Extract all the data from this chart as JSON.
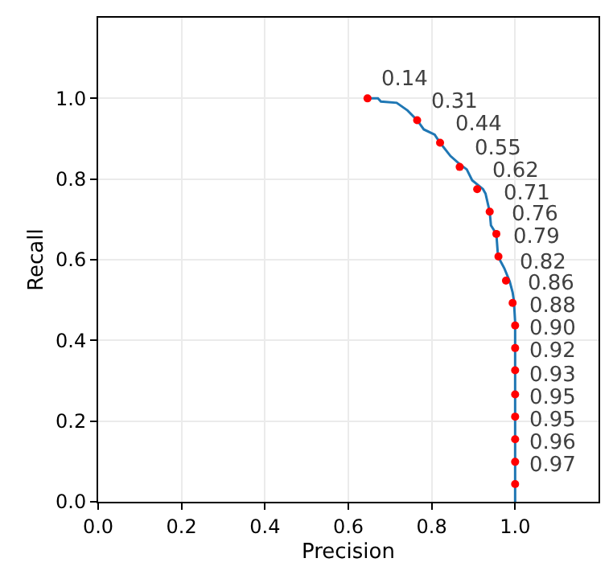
{
  "chart_data": {
    "type": "line",
    "xlabel": "Precision",
    "ylabel": "Recall",
    "xlim": [
      0,
      1.2
    ],
    "ylim": [
      0,
      1.2
    ],
    "xticks": [
      {
        "value": 0,
        "label": "0.0"
      },
      {
        "value": 0.2,
        "label": "0.2"
      },
      {
        "value": 0.4,
        "label": "0.4"
      },
      {
        "value": 0.6,
        "label": "0.6"
      },
      {
        "value": 0.8,
        "label": "0.8"
      },
      {
        "value": 1,
        "label": "1.0"
      }
    ],
    "yticks": [
      {
        "value": 0,
        "label": "0.0"
      },
      {
        "value": 0.2,
        "label": "0.2"
      },
      {
        "value": 0.4,
        "label": "0.4"
      },
      {
        "value": 0.6,
        "label": "0.6"
      },
      {
        "value": 0.8,
        "label": "0.8"
      },
      {
        "value": 1,
        "label": "1.0"
      }
    ],
    "grid": true,
    "series": [
      {
        "color": "#1f77b4",
        "marker": "none",
        "line_style": "solid",
        "x": [
          0.646,
          0.671,
          0.678,
          0.716,
          0.742,
          0.765,
          0.781,
          0.807,
          0.82,
          0.845,
          0.867,
          0.884,
          0.897,
          0.923,
          0.929,
          0.939,
          0.942,
          0.955,
          0.959,
          0.974,
          0.987,
          0.994,
          0.997,
          1.0,
          1.0
        ],
        "values": [
          1.0,
          1.0,
          0.992,
          0.989,
          0.97,
          0.946,
          0.923,
          0.91,
          0.89,
          0.857,
          0.837,
          0.824,
          0.797,
          0.775,
          0.764,
          0.719,
          0.685,
          0.664,
          0.608,
          0.579,
          0.546,
          0.519,
          0.499,
          0.446,
          0.0
        ]
      },
      {
        "type": "scatter",
        "color": "#ff0000",
        "marker": "circle",
        "x": [
          0.646,
          0.765,
          0.82,
          0.867,
          0.909,
          0.939,
          0.955,
          0.96,
          0.978,
          0.994,
          1.0,
          1.0,
          1.0,
          1.0,
          1.0,
          1.0,
          1.0,
          1.0
        ],
        "values": [
          1.0,
          0.946,
          0.89,
          0.83,
          0.775,
          0.719,
          0.664,
          0.608,
          0.548,
          0.493,
          0.437,
          0.381,
          0.326,
          0.266,
          0.211,
          0.155,
          0.099,
          0.044
        ]
      }
    ],
    "annotations": [
      {
        "text": "0.14",
        "x": 0.646,
        "y": 1.0
      },
      {
        "text": "0.31",
        "x": 0.765,
        "y": 0.946
      },
      {
        "text": "0.44",
        "x": 0.82,
        "y": 0.89
      },
      {
        "text": "0.55",
        "x": 0.867,
        "y": 0.83
      },
      {
        "text": "0.62",
        "x": 0.909,
        "y": 0.775
      },
      {
        "text": "0.71",
        "x": 0.939,
        "y": 0.719
      },
      {
        "text": "0.76",
        "x": 0.955,
        "y": 0.664
      },
      {
        "text": "0.79",
        "x": 0.96,
        "y": 0.608
      },
      {
        "text": "0.82",
        "x": 0.978,
        "y": 0.548
      },
      {
        "text": "0.86",
        "x": 0.994,
        "y": 0.493
      },
      {
        "text": "0.88",
        "x": 1.0,
        "y": 0.437
      },
      {
        "text": "0.90",
        "x": 1.0,
        "y": 0.381
      },
      {
        "text": "0.92",
        "x": 1.0,
        "y": 0.326
      },
      {
        "text": "0.93",
        "x": 1.0,
        "y": 0.266
      },
      {
        "text": "0.95",
        "x": 1.0,
        "y": 0.211
      },
      {
        "text": "0.95",
        "x": 1.0,
        "y": 0.155
      },
      {
        "text": "0.96",
        "x": 1.0,
        "y": 0.099
      },
      {
        "text": "0.97",
        "x": 1.0,
        "y": 0.044
      }
    ]
  }
}
